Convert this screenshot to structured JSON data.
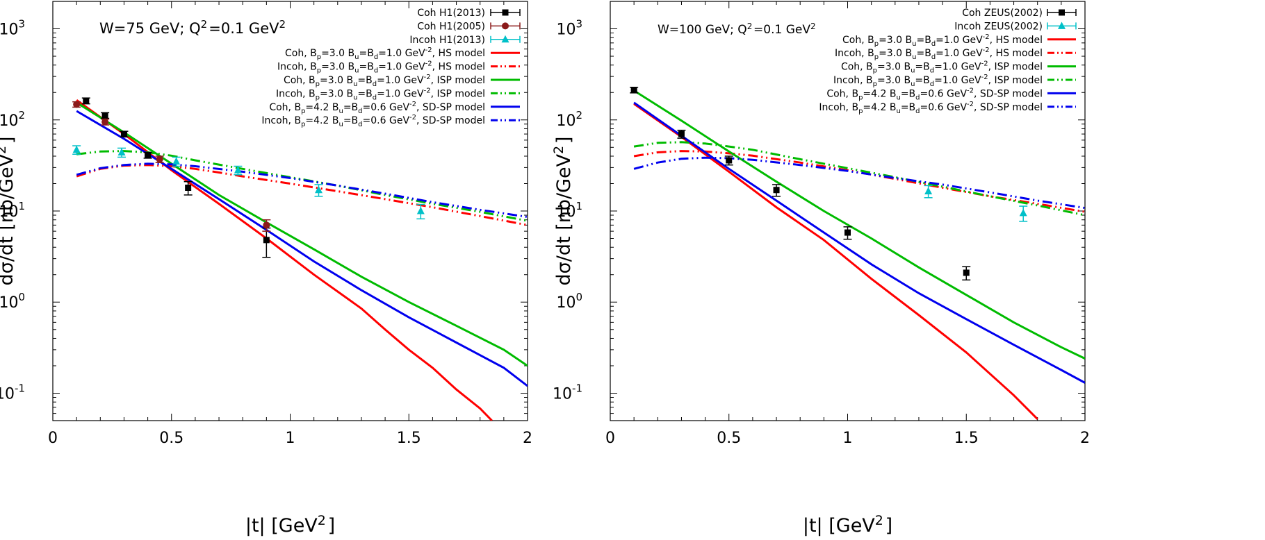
{
  "chart_data": [
    {
      "type": "line",
      "panel": "left",
      "annotation": "W=75 GeV; Q²=0.1 GeV²",
      "xlabel": "|t| [GeV²]",
      "ylabel": "dσ/dt [nb/GeV²]",
      "xlim": [
        0,
        2
      ],
      "ylim": [
        0.05,
        2000
      ],
      "yscale": "log",
      "xticks": [
        "0",
        "0.5",
        "1",
        "1.5",
        "2"
      ],
      "yticks": [
        {
          "base": "10",
          "exp": "3",
          "value": 1000
        },
        {
          "base": "10",
          "exp": "2",
          "value": 100
        },
        {
          "base": "10",
          "exp": "1",
          "value": 10
        },
        {
          "base": "10",
          "exp": "0",
          "value": 1
        },
        {
          "base": "10",
          "exp": "-1",
          "value": 0.1
        }
      ],
      "legend_position": "top-right",
      "data_series": [
        {
          "name": "Coh H1(2013)",
          "marker": "square",
          "color": "#000000",
          "points": [
            [
              0.14,
              162,
              12
            ],
            [
              0.22,
              112,
              8
            ],
            [
              0.3,
              70,
              5
            ],
            [
              0.4,
              41,
              3
            ],
            [
              0.57,
              18,
              3
            ],
            [
              0.9,
              4.8,
              1.7
            ]
          ]
        },
        {
          "name": "Coh H1(2005)",
          "marker": "circle",
          "color": "#8b1a1a",
          "points": [
            [
              0.1,
              148,
              10
            ],
            [
              0.22,
              95,
              7
            ],
            [
              0.45,
              37,
              3
            ],
            [
              0.9,
              7.0,
              1.0
            ]
          ]
        },
        {
          "name": "Incoh H1(2013)",
          "marker": "triangle",
          "color": "#00c0c8",
          "points": [
            [
              0.1,
              47,
              5
            ],
            [
              0.29,
              44,
              5
            ],
            [
              0.52,
              35,
              4
            ],
            [
              0.78,
              28,
              3
            ],
            [
              1.12,
              17,
              2.5
            ],
            [
              1.55,
              10,
              1.8
            ]
          ]
        }
      ],
      "model_series": [
        {
          "name": "Coh, Bₚ=3.0 Bᵤ=B_d=1.0 GeV⁻², HS model",
          "legend": {
            "pre": "Coh, B",
            "parts": [
              [
                "p",
                "=3.0 B"
              ],
              [
                "u",
                "=B"
              ],
              [
                "d",
                "=1.0 GeV"
              ]
            ],
            "sup": "-2",
            "post": ", HS model"
          },
          "color": "#ff0000",
          "dash": "solid",
          "x": [
            0.1,
            0.3,
            0.5,
            0.7,
            0.9,
            1.1,
            1.3,
            1.4,
            1.5,
            1.6,
            1.7,
            1.8,
            1.85
          ],
          "y": [
            165,
            70,
            28,
            12,
            5.0,
            2.0,
            0.85,
            0.5,
            0.3,
            0.19,
            0.11,
            0.068,
            0.05
          ]
        },
        {
          "name": "Incoh, Bₚ=3.0 Bᵤ=B_d=1.0 GeV⁻², HS model",
          "legend": {
            "pre": "Incoh, B",
            "parts": [
              [
                "p",
                "=3.0 B"
              ],
              [
                "u",
                "=B"
              ],
              [
                "d",
                "=1.0 GeV"
              ]
            ],
            "sup": "-2",
            "post": ", HS model"
          },
          "color": "#ff0000",
          "dash": "dashdot",
          "x": [
            0.1,
            0.2,
            0.3,
            0.4,
            0.5,
            0.6,
            0.7,
            0.8,
            1.0,
            1.2,
            1.4,
            1.6,
            1.8,
            2.0
          ],
          "y": [
            24,
            29,
            31.5,
            32,
            31,
            29,
            26.5,
            24,
            20,
            16.5,
            13.5,
            11,
            8.8,
            7.0
          ]
        },
        {
          "name": "Coh, Bₚ=3.0 Bᵤ=B_d=1.0 GeV⁻², ISP model",
          "legend": {
            "pre": "Coh, B",
            "parts": [
              [
                "p",
                "=3.0 B"
              ],
              [
                "u",
                "=B"
              ],
              [
                "d",
                "=1.0 GeV"
              ]
            ],
            "sup": "-2",
            "post": ", ISP model"
          },
          "color": "#00bb00",
          "dash": "solid",
          "x": [
            0.1,
            0.3,
            0.5,
            0.7,
            0.9,
            1.1,
            1.3,
            1.5,
            1.7,
            1.9,
            2.0
          ],
          "y": [
            155,
            73,
            33,
            15,
            7.5,
            3.8,
            1.9,
            1.0,
            0.55,
            0.3,
            0.2
          ]
        },
        {
          "name": "Incoh, Bₚ=3.0 Bᵤ=B_d=1.0 GeV⁻², ISP model",
          "legend": {
            "pre": "Incoh, B",
            "parts": [
              [
                "p",
                "=3.0 B"
              ],
              [
                "u",
                "=B"
              ],
              [
                "d",
                "=1.0 GeV"
              ]
            ],
            "sup": "-2",
            "post": ", ISP model"
          },
          "color": "#00bb00",
          "dash": "dashdot",
          "x": [
            0.1,
            0.2,
            0.3,
            0.4,
            0.5,
            0.6,
            0.8,
            1.0,
            1.2,
            1.4,
            1.6,
            1.8,
            2.0
          ],
          "y": [
            42,
            45,
            45.5,
            44,
            40.5,
            36,
            29,
            23.5,
            19,
            15,
            12,
            9.8,
            7.8
          ]
        },
        {
          "name": "Coh, Bₚ=4.2 Bᵤ=B_d=0.6 GeV⁻², SD-SP model",
          "legend": {
            "pre": "Coh, B",
            "parts": [
              [
                "p",
                "=4.2 B"
              ],
              [
                "u",
                "=B"
              ],
              [
                "d",
                "=0.6 GeV"
              ]
            ],
            "sup": "-2",
            "post": ", SD-SP model"
          },
          "color": "#0000ee",
          "dash": "solid",
          "x": [
            0.1,
            0.3,
            0.5,
            0.7,
            0.9,
            1.1,
            1.3,
            1.5,
            1.7,
            1.9,
            2.0
          ],
          "y": [
            125,
            62,
            29,
            13.5,
            6.2,
            2.8,
            1.35,
            0.68,
            0.36,
            0.19,
            0.12
          ]
        },
        {
          "name": "Incoh, Bₚ=4.2 Bᵤ=B_d=0.6 GeV⁻², SD-SP model",
          "legend": {
            "pre": "Incoh, B",
            "parts": [
              [
                "p",
                "=4.2 B"
              ],
              [
                "u",
                "=B"
              ],
              [
                "d",
                "=0.6 GeV"
              ]
            ],
            "sup": "-2",
            "post": ", SD-SP model"
          },
          "color": "#0000ee",
          "dash": "dashdot",
          "x": [
            0.1,
            0.2,
            0.3,
            0.4,
            0.5,
            0.6,
            0.8,
            1.0,
            1.2,
            1.4,
            1.6,
            1.8,
            2.0
          ],
          "y": [
            25,
            29.5,
            32,
            33,
            32.5,
            31,
            27,
            23,
            19,
            15.5,
            12.5,
            10.3,
            8.6
          ]
        }
      ]
    },
    {
      "type": "line",
      "panel": "right",
      "annotation": "W=100 GeV; Q²=0.1 GeV²",
      "xlabel": "|t| [GeV²]",
      "ylabel": "dσ/dt [nb/GeV²]",
      "xlim": [
        0,
        2
      ],
      "ylim": [
        0.05,
        2000
      ],
      "yscale": "log",
      "xticks": [
        "0",
        "0.5",
        "1",
        "1.5",
        "2"
      ],
      "yticks": [
        {
          "base": "10",
          "exp": "3",
          "value": 1000
        },
        {
          "base": "10",
          "exp": "2",
          "value": 100
        },
        {
          "base": "10",
          "exp": "1",
          "value": 10
        },
        {
          "base": "10",
          "exp": "0",
          "value": 1
        },
        {
          "base": "10",
          "exp": "-1",
          "value": 0.1
        }
      ],
      "legend_position": "top-right",
      "data_series": [
        {
          "name": "Coh ZEUS(2002)",
          "marker": "square",
          "color": "#000000",
          "points": [
            [
              0.1,
              213,
              15
            ],
            [
              0.3,
              70,
              7
            ],
            [
              0.5,
              36,
              4
            ],
            [
              0.7,
              17,
              2.5
            ],
            [
              1.0,
              5.8,
              0.9
            ],
            [
              1.5,
              2.1,
              0.35
            ]
          ]
        },
        {
          "name": "Incoh ZEUS(2002)",
          "marker": "triangle",
          "color": "#00c0c8",
          "points": [
            [
              1.34,
              16.5,
              2.5
            ],
            [
              1.74,
              9.5,
              1.8
            ]
          ]
        }
      ],
      "model_series": [
        {
          "name": "Coh, Bₚ=3.0 Bᵤ=B_d=1.0 GeV⁻², HS model",
          "legend": {
            "pre": "Coh, B",
            "parts": [
              [
                "p",
                "=3.0 B"
              ],
              [
                "u",
                "=B"
              ],
              [
                "d",
                "=1.0 GeV"
              ]
            ],
            "sup": "-2",
            "post": ", HS model"
          },
          "color": "#ff0000",
          "dash": "solid",
          "x": [
            0.1,
            0.3,
            0.5,
            0.7,
            0.9,
            1.1,
            1.3,
            1.5,
            1.7,
            1.8
          ],
          "y": [
            150,
            65,
            27,
            11,
            4.8,
            1.8,
            0.72,
            0.28,
            0.095,
            0.052
          ]
        },
        {
          "name": "Incoh, Bₚ=3.0 Bᵤ=B_d=1.0 GeV⁻², HS model",
          "legend": {
            "pre": "Incoh, B",
            "parts": [
              [
                "p",
                "=3.0 B"
              ],
              [
                "u",
                "=B"
              ],
              [
                "d",
                "=1.0 GeV"
              ]
            ],
            "sup": "-2",
            "post": ", HS model"
          },
          "color": "#ff0000",
          "dash": "dashdot",
          "x": [
            0.1,
            0.2,
            0.3,
            0.4,
            0.5,
            0.6,
            0.8,
            1.0,
            1.2,
            1.4,
            1.6,
            1.8,
            2.0
          ],
          "y": [
            40,
            44,
            45.5,
            45,
            43,
            40.5,
            34,
            28,
            22.5,
            18,
            14.5,
            12,
            9.8
          ]
        },
        {
          "name": "Coh, Bₚ=3.0 Bᵤ=B_d=1.0 GeV⁻², ISP model",
          "legend": {
            "pre": "Coh, B",
            "parts": [
              [
                "p",
                "=3.0 B"
              ],
              [
                "u",
                "=B"
              ],
              [
                "d",
                "=1.0 GeV"
              ]
            ],
            "sup": "-2",
            "post": ", ISP model"
          },
          "color": "#00bb00",
          "dash": "solid",
          "x": [
            0.1,
            0.3,
            0.5,
            0.7,
            0.9,
            1.1,
            1.3,
            1.5,
            1.7,
            1.9,
            2.0
          ],
          "y": [
            210,
            98,
            45,
            21,
            10,
            5.0,
            2.4,
            1.2,
            0.6,
            0.32,
            0.24
          ]
        },
        {
          "name": "Incoh, Bₚ=3.0 Bᵤ=B_d=1.0 GeV⁻², ISP model",
          "legend": {
            "pre": "Incoh, B",
            "parts": [
              [
                "p",
                "=3.0 B"
              ],
              [
                "u",
                "=B"
              ],
              [
                "d",
                "=1.0 GeV"
              ]
            ],
            "sup": "-2",
            "post": ", ISP model"
          },
          "color": "#00bb00",
          "dash": "dashdot",
          "x": [
            0.1,
            0.2,
            0.3,
            0.4,
            0.5,
            0.6,
            0.8,
            1.0,
            1.2,
            1.4,
            1.6,
            1.8,
            2.0
          ],
          "y": [
            51,
            56,
            57,
            55,
            51,
            47,
            37,
            29.5,
            23.5,
            18.5,
            14.5,
            11.5,
            9.0
          ]
        },
        {
          "name": "Coh, Bₚ=4.2 Bᵤ=B_d=0.6 GeV⁻², SD-SP model",
          "legend": {
            "pre": "Coh, B",
            "parts": [
              [
                "p",
                "=4.2 B"
              ],
              [
                "u",
                "=B"
              ],
              [
                "d",
                "=0.6 GeV"
              ]
            ],
            "sup": "-2",
            "post": ", SD-SP model"
          },
          "color": "#0000ee",
          "dash": "solid",
          "x": [
            0.1,
            0.3,
            0.5,
            0.7,
            0.9,
            1.1,
            1.3,
            1.5,
            1.7,
            1.9,
            2.0
          ],
          "y": [
            155,
            67,
            29,
            13,
            5.8,
            2.6,
            1.25,
            0.65,
            0.34,
            0.18,
            0.13
          ]
        },
        {
          "name": "Incoh, Bₚ=4.2 Bᵤ=B_d=0.6 GeV⁻², SD-SP model",
          "legend": {
            "pre": "Incoh, B",
            "parts": [
              [
                "p",
                "=4.2 B"
              ],
              [
                "u",
                "=B"
              ],
              [
                "d",
                "=0.6 GeV"
              ]
            ],
            "sup": "-2",
            "post": ", SD-SP model"
          },
          "color": "#0000ee",
          "dash": "dashdot",
          "x": [
            0.1,
            0.2,
            0.3,
            0.4,
            0.5,
            0.6,
            0.8,
            1.0,
            1.2,
            1.4,
            1.6,
            1.8,
            2.0
          ],
          "y": [
            29,
            34,
            37.5,
            38.5,
            38,
            36.5,
            32,
            27.5,
            23,
            19.5,
            16,
            13,
            10.8
          ]
        }
      ]
    }
  ]
}
